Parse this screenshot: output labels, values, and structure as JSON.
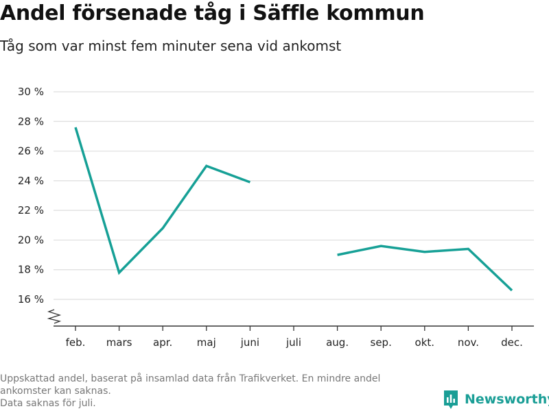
{
  "header": {
    "title": "Andel försenade tåg i Säffle kommun",
    "subtitle": "Tåg som var minst fem minuter sena vid ankomst"
  },
  "footer": {
    "note_line1": "Uppskattad andel, baserat på insamlad data från Trafikverket. En mindre andel",
    "note_line2": "ankomster kan saknas.",
    "note_line3": "Data saknas för juli.",
    "brand": "Newsworthy"
  },
  "colors": {
    "line": "#16a096",
    "grid": "#dddddd",
    "axis": "#333333",
    "brand": "#1a9e96"
  },
  "chart_data": {
    "type": "line",
    "title": "Andel försenade tåg i Säffle kommun",
    "subtitle": "Tåg som var minst fem minuter sena vid ankomst",
    "categories": [
      "feb.",
      "mars",
      "apr.",
      "maj",
      "juni",
      "juli",
      "aug.",
      "sep.",
      "okt.",
      "nov.",
      "dec."
    ],
    "series": [
      {
        "values": [
          27.6,
          17.8,
          20.8,
          25.0,
          23.9,
          null,
          19.0,
          19.6,
          19.2,
          19.4,
          16.6
        ]
      }
    ],
    "yticks": [
      16,
      18,
      20,
      22,
      24,
      26,
      28,
      30
    ],
    "ytick_labels": [
      "16 %",
      "18 %",
      "20 %",
      "22 %",
      "24 %",
      "26 %",
      "28 %",
      "30 %"
    ],
    "ylim": [
      16,
      30
    ],
    "y_axis_broken": true,
    "grid": true,
    "xlabel": "",
    "ylabel": ""
  }
}
